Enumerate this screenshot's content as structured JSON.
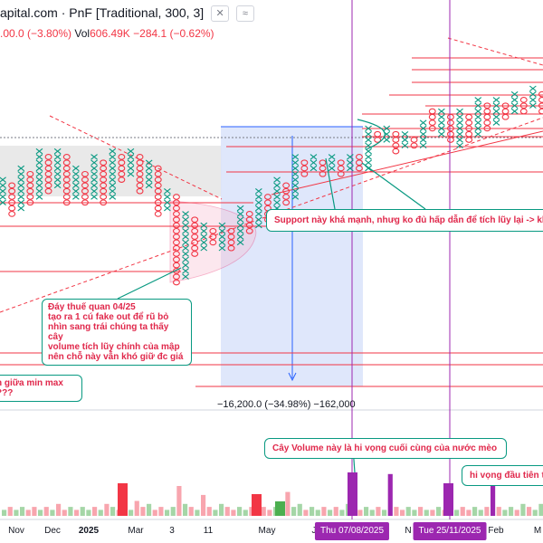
{
  "header": {
    "title": "apital.com · PnF [Traditional, 300, 3]",
    "ohlc_prefix": ".00.0 (−3.80%)",
    "vol_label": "Vol",
    "vol_value": "606.49K",
    "vol_change": "−284.1 (−0.62%)",
    "icons": [
      "close-icon",
      "wave-icon"
    ]
  },
  "measure": {
    "text": "−16,200.0 (−34.98%) −162,000"
  },
  "annotations": {
    "tariff_bottom": "Đáy thuế quan 04/25\ntạo ra 1 cú fake out để rũ bỏ\nnhìn sang trái chúng ta thấy cây\nvolume tích lũy chính của mập\nnên chỗ này vẫn khó giữ đc giá",
    "support": "Support này khá mạnh, nhưg ko đủ hấp dẫn để tích lũy lại -> khả n",
    "minmax": "h giữa min max\n???",
    "volume_hope": "Cây Volume này là hi vọng cuối cùng của nước mèo",
    "first_hope": "hi vọng đầu tiên th"
  },
  "time_axis": {
    "labels": [
      "Nov",
      "Dec",
      "2025",
      "Mar",
      "3",
      "11",
      "May",
      "J",
      "N",
      "Feb",
      "M"
    ],
    "highlighted": [
      "Thu 07/08/2025",
      "Tue 25/11/2025"
    ]
  },
  "colors": {
    "x_column": "#089981",
    "o_column": "#f23645",
    "support_line": "#f23645",
    "marker_line": "#9c27b0",
    "note_border": "#089981",
    "note_text": "#e0284b",
    "measure_fill": "#dbe4fb",
    "consolidation_fill": "#e3e3e3"
  },
  "chart_data": {
    "type": "point_and_figure",
    "box_size": 300,
    "reversal": 3,
    "columns": [
      {
        "t": "X",
        "lo": 22,
        "hi": 26
      },
      {
        "t": "O",
        "lo": 20,
        "hi": 25
      },
      {
        "t": "X",
        "lo": 21,
        "hi": 28
      },
      {
        "t": "O",
        "lo": 22,
        "hi": 27
      },
      {
        "t": "X",
        "lo": 23,
        "hi": 31
      },
      {
        "t": "O",
        "lo": 24,
        "hi": 30
      },
      {
        "t": "X",
        "lo": 25,
        "hi": 31
      },
      {
        "t": "O",
        "lo": 22,
        "hi": 30
      },
      {
        "t": "X",
        "lo": 23,
        "hi": 28
      },
      {
        "t": "O",
        "lo": 22,
        "hi": 27
      },
      {
        "t": "X",
        "lo": 23,
        "hi": 30
      },
      {
        "t": "O",
        "lo": 22,
        "hi": 29
      },
      {
        "t": "X",
        "lo": 23,
        "hi": 31
      },
      {
        "t": "O",
        "lo": 26,
        "hi": 30
      },
      {
        "t": "X",
        "lo": 27,
        "hi": 31
      },
      {
        "t": "O",
        "lo": 24,
        "hi": 30
      },
      {
        "t": "X",
        "lo": 25,
        "hi": 29
      },
      {
        "t": "O",
        "lo": 20,
        "hi": 28
      },
      {
        "t": "X",
        "lo": 21,
        "hi": 24
      },
      {
        "t": "O",
        "lo": 8,
        "hi": 23
      },
      {
        "t": "X",
        "lo": 9,
        "hi": 20
      },
      {
        "t": "O",
        "lo": 13,
        "hi": 19
      },
      {
        "t": "X",
        "lo": 14,
        "hi": 18
      },
      {
        "t": "O",
        "lo": 15,
        "hi": 17
      },
      {
        "t": "X",
        "lo": 14,
        "hi": 18
      },
      {
        "t": "O",
        "lo": 14,
        "hi": 17
      },
      {
        "t": "X",
        "lo": 15,
        "hi": 21
      },
      {
        "t": "O",
        "lo": 17,
        "hi": 20
      },
      {
        "t": "X",
        "lo": 18,
        "hi": 24
      },
      {
        "t": "O",
        "lo": 19,
        "hi": 23
      },
      {
        "t": "X",
        "lo": 20,
        "hi": 26
      },
      {
        "t": "O",
        "lo": 22,
        "hi": 25
      },
      {
        "t": "X",
        "lo": 23,
        "hi": 30
      },
      {
        "t": "O",
        "lo": 27,
        "hi": 29
      },
      {
        "t": "X",
        "lo": 28,
        "hi": 30
      },
      {
        "t": "O",
        "lo": 27,
        "hi": 29
      },
      {
        "t": "X",
        "lo": 28,
        "hi": 30
      },
      {
        "t": "O",
        "lo": 27,
        "hi": 29
      },
      {
        "t": "X",
        "lo": 28,
        "hi": 30
      },
      {
        "t": "O",
        "lo": 28,
        "hi": 30
      },
      {
        "t": "X",
        "lo": 28,
        "hi": 35
      },
      {
        "t": "O",
        "lo": 33,
        "hi": 34
      },
      {
        "t": "X",
        "lo": 33,
        "hi": 35
      },
      {
        "t": "O",
        "lo": 31,
        "hi": 34
      },
      {
        "t": "X",
        "lo": 32,
        "hi": 34
      },
      {
        "t": "O",
        "lo": 32,
        "hi": 33
      },
      {
        "t": "X",
        "lo": 32,
        "hi": 36
      },
      {
        "t": "O",
        "lo": 35,
        "hi": 38
      },
      {
        "t": "X",
        "lo": 34,
        "hi": 38
      },
      {
        "t": "O",
        "lo": 33,
        "hi": 37
      },
      {
        "t": "X",
        "lo": 32,
        "hi": 38
      },
      {
        "t": "O",
        "lo": 33,
        "hi": 37
      },
      {
        "t": "X",
        "lo": 34,
        "hi": 40
      },
      {
        "t": "O",
        "lo": 35,
        "hi": 39
      },
      {
        "t": "X",
        "lo": 36,
        "hi": 40
      },
      {
        "t": "O",
        "lo": 37,
        "hi": 39
      },
      {
        "t": "X",
        "lo": 38,
        "hi": 41
      },
      {
        "t": "O",
        "lo": 38,
        "hi": 40
      },
      {
        "t": "X",
        "lo": 39,
        "hi": 42
      },
      {
        "t": "O",
        "lo": 38,
        "hi": 41
      },
      {
        "t": "X",
        "lo": 39,
        "hi": 40
      },
      {
        "t": "O",
        "lo": 37,
        "hi": 39
      },
      {
        "t": "X",
        "lo": 38,
        "hi": 39
      }
    ],
    "volume": [
      {
        "v": 2,
        "c": "g"
      },
      {
        "v": 3,
        "c": "r"
      },
      {
        "v": 2,
        "c": "g"
      },
      {
        "v": 3,
        "c": "g"
      },
      {
        "v": 2,
        "c": "r"
      },
      {
        "v": 3,
        "c": "r"
      },
      {
        "v": 2,
        "c": "g"
      },
      {
        "v": 3,
        "c": "r"
      },
      {
        "v": 2,
        "c": "g"
      },
      {
        "v": 4,
        "c": "r"
      },
      {
        "v": 2,
        "c": "r"
      },
      {
        "v": 3,
        "c": "g"
      },
      {
        "v": 2,
        "c": "r"
      },
      {
        "v": 3,
        "c": "g"
      },
      {
        "v": 2,
        "c": "g"
      },
      {
        "v": 3,
        "c": "r"
      },
      {
        "v": 2,
        "c": "g"
      },
      {
        "v": 4,
        "c": "r"
      },
      {
        "v": 3,
        "c": "g"
      },
      {
        "v": 2,
        "c": "r"
      },
      {
        "v": 3,
        "c": "r"
      },
      {
        "v": 2,
        "c": "g"
      },
      {
        "v": 5,
        "c": "r"
      },
      {
        "v": 3,
        "c": "r"
      },
      {
        "v": 4,
        "c": "g"
      },
      {
        "v": 2,
        "c": "r"
      },
      {
        "v": 3,
        "c": "r"
      },
      {
        "v": 2,
        "c": "g"
      },
      {
        "v": 3,
        "c": "g"
      },
      {
        "v": 10,
        "c": "r"
      },
      {
        "v": 4,
        "c": "g"
      },
      {
        "v": 3,
        "c": "r"
      },
      {
        "v": 2,
        "c": "g"
      },
      {
        "v": 7,
        "c": "r"
      },
      {
        "v": 3,
        "c": "r"
      },
      {
        "v": 2,
        "c": "g"
      },
      {
        "v": 4,
        "c": "g"
      },
      {
        "v": 3,
        "c": "r"
      },
      {
        "v": 2,
        "c": "r"
      },
      {
        "v": 3,
        "c": "g"
      },
      {
        "v": 2,
        "c": "g"
      },
      {
        "v": 3,
        "c": "r"
      },
      {
        "v": 2,
        "c": "g"
      },
      {
        "v": 3,
        "c": "r"
      },
      {
        "v": 2,
        "c": "r"
      },
      {
        "v": 3,
        "c": "g"
      },
      {
        "v": 2,
        "c": "g"
      },
      {
        "v": 8,
        "c": "r"
      },
      {
        "v": 3,
        "c": "g"
      },
      {
        "v": 4,
        "c": "g"
      },
      {
        "v": 2,
        "c": "r"
      },
      {
        "v": 3,
        "c": "g"
      },
      {
        "v": 2,
        "c": "g"
      },
      {
        "v": 3,
        "c": "r"
      },
      {
        "v": 2,
        "c": "g"
      },
      {
        "v": 3,
        "c": "r"
      },
      {
        "v": 2,
        "c": "g"
      },
      {
        "v": 4,
        "c": "g"
      },
      {
        "v": 3,
        "c": "r"
      },
      {
        "v": 2,
        "c": "r"
      },
      {
        "v": 3,
        "c": "g"
      },
      {
        "v": 2,
        "c": "g"
      },
      {
        "v": 3,
        "c": "r"
      },
      {
        "v": 2,
        "c": "g"
      },
      {
        "v": 14,
        "c": "p"
      },
      {
        "v": 3,
        "c": "r"
      },
      {
        "v": 2,
        "c": "r"
      },
      {
        "v": 3,
        "c": "g"
      },
      {
        "v": 2,
        "c": "g"
      },
      {
        "v": 3,
        "c": "r"
      },
      {
        "v": 2,
        "c": "g"
      },
      {
        "v": 2,
        "c": "r"
      },
      {
        "v": 3,
        "c": "g"
      },
      {
        "v": 2,
        "c": "r"
      },
      {
        "v": 3,
        "c": "g"
      },
      {
        "v": 2,
        "c": "g"
      },
      {
        "v": 3,
        "c": "r"
      },
      {
        "v": 2,
        "c": "r"
      },
      {
        "v": 3,
        "c": "g"
      },
      {
        "v": 2,
        "c": "g"
      },
      {
        "v": 3,
        "c": "r"
      },
      {
        "v": 12,
        "c": "p"
      },
      {
        "v": 3,
        "c": "r"
      },
      {
        "v": 2,
        "c": "g"
      },
      {
        "v": 3,
        "c": "g"
      },
      {
        "v": 2,
        "c": "r"
      },
      {
        "v": 4,
        "c": "g"
      },
      {
        "v": 3,
        "c": "r"
      },
      {
        "v": 2,
        "c": "g"
      },
      {
        "v": 4,
        "c": "g"
      }
    ]
  }
}
